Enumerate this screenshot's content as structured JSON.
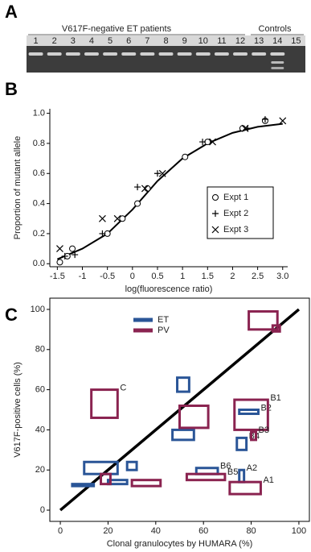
{
  "panel_a": {
    "label": "A",
    "group_labels": [
      "V617F-negative ET patients",
      "Controls"
    ],
    "lanes": [
      "1",
      "2",
      "3",
      "4",
      "5",
      "6",
      "7",
      "8",
      "9",
      "10",
      "11",
      "12",
      "13",
      "14",
      "15"
    ]
  },
  "chart_data": [
    {
      "panel_label": "B",
      "type": "scatter",
      "xlabel": "log(fluorescence ratio)",
      "ylabel": "Proportion of mutant allele",
      "xlim": [
        -1.65,
        3.1
      ],
      "ylim": [
        -0.02,
        1.03
      ],
      "xticks": [
        -1.5,
        -1,
        -0.5,
        0,
        0.5,
        1,
        1.5,
        2,
        2.5,
        {
          "value": 3,
          "label": "3.0"
        }
      ],
      "yticks": [
        {
          "value": 0,
          "label": "0.0"
        },
        0.2,
        0.4,
        0.6,
        0.8,
        {
          "value": 1,
          "label": "1.0"
        }
      ],
      "color": "#000000",
      "series": [
        {
          "name": "Expt 1",
          "marker": "circle",
          "x": [
            -1.45,
            -1.3,
            -1.2,
            -0.5,
            -0.2,
            0.1,
            0.3,
            1.05,
            1.5,
            2.2,
            2.65
          ],
          "values": [
            0.01,
            0.05,
            0.1,
            0.2,
            0.3,
            0.4,
            0.5,
            0.71,
            0.81,
            0.9,
            0.95
          ]
        },
        {
          "name": "Expt 2",
          "marker": "plus",
          "x": [
            -1.35,
            -1.15,
            -0.6,
            0.1,
            0.5,
            1.4,
            2.3,
            2.65
          ],
          "values": [
            0.05,
            0.06,
            0.2,
            0.51,
            0.6,
            0.81,
            0.9,
            0.96
          ]
        },
        {
          "name": "Expt 3",
          "marker": "cross",
          "x": [
            -1.45,
            -0.6,
            -0.3,
            0.25,
            0.6,
            1.6,
            2.25,
            3.0
          ],
          "values": [
            0.1,
            0.3,
            0.3,
            0.5,
            0.6,
            0.81,
            0.9,
            0.95
          ]
        }
      ],
      "fit": {
        "x": [
          -1.5,
          -1,
          -0.5,
          0,
          0.5,
          1,
          1.5,
          2,
          2.5,
          3
        ],
        "values": [
          0.03,
          0.1,
          0.2,
          0.36,
          0.55,
          0.7,
          0.8,
          0.87,
          0.91,
          0.93
        ]
      }
    },
    {
      "panel_label": "C",
      "type": "range-box",
      "xlabel": "Clonal granulocytes by HUMARA (%)",
      "ylabel": "V617F-positive cells (%)",
      "xlim": [
        -4.4,
        104.4
      ],
      "ylim": [
        -5.6,
        105.6
      ],
      "xticks": [
        0,
        20,
        40,
        60,
        80,
        100
      ],
      "yticks": [
        0,
        20,
        40,
        60,
        80,
        100
      ],
      "series": [
        {
          "name": "ET",
          "color": "#2a5597",
          "boxes": [
            {
              "x": [
                10,
                24
              ],
              "y": [
                18,
                24
              ]
            },
            {
              "x": [
                5,
                14
              ],
              "y": [
                12,
                13
              ]
            },
            {
              "x": [
                28,
                32
              ],
              "y": [
                20,
                24
              ]
            },
            {
              "x": [
                20,
                28
              ],
              "y": [
                13,
                15
              ]
            },
            {
              "x": [
                49,
                54
              ],
              "y": [
                59,
                66
              ]
            },
            {
              "x": [
                47,
                56
              ],
              "y": [
                35,
                40
              ]
            },
            {
              "label": "B6",
              "x": [
                57,
                66
              ],
              "y": [
                18,
                21
              ]
            },
            {
              "label": "B2",
              "x": [
                75,
                83
              ],
              "y": [
                48,
                50
              ]
            },
            {
              "label": "B4",
              "x": [
                74,
                78
              ],
              "y": [
                30,
                36
              ]
            },
            {
              "label": "A2",
              "x": [
                75,
                77
              ],
              "y": [
                14,
                20
              ]
            }
          ]
        },
        {
          "name": "PV",
          "color": "#8a2350",
          "boxes": [
            {
              "label": "C",
              "x": [
                13,
                24
              ],
              "y": [
                46,
                60
              ]
            },
            {
              "x": [
                50,
                62
              ],
              "y": [
                41,
                52
              ]
            },
            {
              "x": [
                17,
                21
              ],
              "y": [
                13,
                18
              ]
            },
            {
              "x": [
                30,
                42
              ],
              "y": [
                12,
                15
              ]
            },
            {
              "label": "B5",
              "x": [
                53,
                69
              ],
              "y": [
                15,
                18
              ]
            },
            {
              "label": "B1",
              "x": [
                73,
                87
              ],
              "y": [
                40,
                55
              ]
            },
            {
              "label": "B3",
              "x": [
                80,
                82
              ],
              "y": [
                35,
                39
              ]
            },
            {
              "label": "A1",
              "x": [
                71,
                84
              ],
              "y": [
                8,
                14
              ]
            },
            {
              "x": [
                79,
                91
              ],
              "y": [
                90,
                99
              ]
            },
            {
              "x": [
                89,
                92
              ],
              "y": [
                89,
                92
              ]
            }
          ]
        }
      ],
      "identity_line": {
        "x": [
          0,
          100
        ],
        "values": [
          0,
          100
        ]
      }
    }
  ]
}
